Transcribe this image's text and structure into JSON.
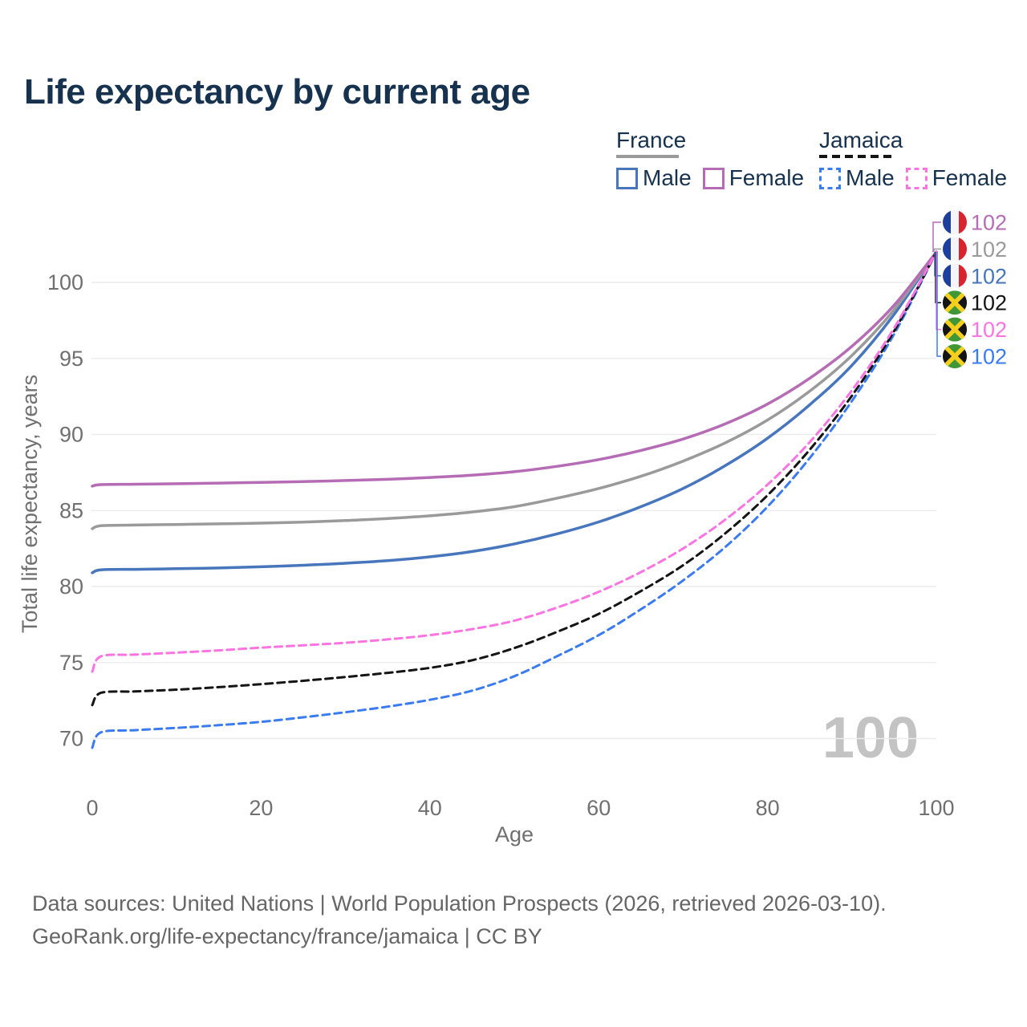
{
  "title": "Life expectancy by current age",
  "legend": {
    "groups": [
      {
        "country": "France",
        "line_style": "solid",
        "line_color": "#9a9a9a",
        "items": [
          {
            "label": "Male",
            "color": "#4776bd",
            "style": "solid"
          },
          {
            "label": "Female",
            "color": "#b56cb5",
            "style": "solid"
          }
        ]
      },
      {
        "country": "Jamaica",
        "line_style": "dashed",
        "line_color": "#141414",
        "items": [
          {
            "label": "Male",
            "color": "#3b7bf0",
            "style": "dashed"
          },
          {
            "label": "Female",
            "color": "#fb74e2",
            "style": "dashed"
          }
        ]
      }
    ]
  },
  "watermark": "100",
  "chart_data": {
    "type": "line",
    "title": "Life expectancy by current age",
    "xlabel": "Age",
    "ylabel": "Total life expectancy, years",
    "x_ticks": [
      0,
      20,
      40,
      60,
      80,
      100
    ],
    "y_ticks": [
      70,
      75,
      80,
      85,
      90,
      95,
      100
    ],
    "xlim": [
      0,
      100
    ],
    "ylim": [
      68.5,
      103
    ],
    "grid": "horizontal",
    "legend_position": "top-right",
    "ages": [
      0,
      1,
      5,
      10,
      15,
      20,
      25,
      30,
      35,
      40,
      45,
      50,
      55,
      60,
      65,
      70,
      75,
      80,
      85,
      90,
      95,
      100
    ],
    "series": [
      {
        "name": "France Male",
        "country": "France",
        "sex": "Male",
        "color": "#4776bd",
        "dash": false,
        "flag": "fr",
        "end_value": 102,
        "values": [
          80.9,
          81.1,
          81.13,
          81.17,
          81.22,
          81.3,
          81.4,
          81.53,
          81.7,
          81.95,
          82.3,
          82.8,
          83.45,
          84.25,
          85.25,
          86.45,
          87.95,
          89.75,
          91.95,
          94.55,
          97.9,
          102
        ]
      },
      {
        "name": "France",
        "country": "France",
        "sex": "Total",
        "color": "#9a9a9a",
        "dash": false,
        "flag": "fr",
        "end_value": 102,
        "values": [
          83.8,
          84.0,
          84.04,
          84.08,
          84.12,
          84.17,
          84.24,
          84.34,
          84.47,
          84.65,
          84.9,
          85.25,
          85.8,
          86.45,
          87.25,
          88.25,
          89.45,
          90.95,
          92.85,
          95.2,
          98.2,
          102
        ]
      },
      {
        "name": "France Female",
        "country": "France",
        "sex": "Female",
        "color": "#b56cb5",
        "dash": false,
        "flag": "fr",
        "end_value": 102,
        "values": [
          86.6,
          86.7,
          86.73,
          86.76,
          86.8,
          86.85,
          86.9,
          86.97,
          87.05,
          87.17,
          87.32,
          87.55,
          87.9,
          88.35,
          88.95,
          89.7,
          90.7,
          92.0,
          93.7,
          95.8,
          98.5,
          102
        ]
      },
      {
        "name": "Jamaica Male",
        "country": "Jamaica",
        "sex": "Male",
        "color": "#3b7bf0",
        "dash": true,
        "flag": "jm",
        "end_value": 102,
        "values": [
          69.4,
          70.4,
          70.55,
          70.7,
          70.88,
          71.1,
          71.4,
          71.73,
          72.1,
          72.55,
          73.15,
          74.1,
          75.4,
          76.8,
          78.5,
          80.4,
          82.6,
          85.25,
          88.45,
          92.2,
          96.6,
          102
        ]
      },
      {
        "name": "Jamaica",
        "country": "Jamaica",
        "sex": "Total",
        "color": "#141414",
        "dash": true,
        "flag": "jm",
        "end_value": 102,
        "values": [
          72.2,
          73.0,
          73.1,
          73.22,
          73.38,
          73.58,
          73.8,
          74.05,
          74.32,
          74.65,
          75.15,
          75.95,
          77.0,
          78.2,
          79.7,
          81.4,
          83.5,
          86.0,
          89.0,
          92.55,
          96.8,
          102
        ]
      },
      {
        "name": "Jamaica Female",
        "country": "Jamaica",
        "sex": "Female",
        "color": "#fb74e2",
        "dash": true,
        "flag": "jm",
        "end_value": 102,
        "values": [
          74.4,
          75.4,
          75.52,
          75.65,
          75.8,
          75.98,
          76.13,
          76.3,
          76.52,
          76.8,
          77.2,
          77.75,
          78.6,
          79.65,
          80.95,
          82.5,
          84.4,
          86.7,
          89.5,
          92.9,
          97.0,
          102
        ]
      }
    ],
    "end_labels": [
      {
        "series": "France Female",
        "flag": "fr",
        "color": "#b56cb5",
        "text": "102"
      },
      {
        "series": "France",
        "flag": "fr",
        "color": "#9a9a9a",
        "text": "102"
      },
      {
        "series": "France Male",
        "flag": "fr",
        "color": "#4776bd",
        "text": "102"
      },
      {
        "series": "Jamaica",
        "flag": "jm",
        "color": "#141414",
        "text": "102"
      },
      {
        "series": "Jamaica Female",
        "flag": "jm",
        "color": "#fb74e2",
        "text": "102"
      },
      {
        "series": "Jamaica Male",
        "flag": "jm",
        "color": "#3b7bf0",
        "text": "102"
      }
    ],
    "flag_colors": {
      "fr": {
        "blue": "#1e3f9e",
        "white": "#f5f5f7",
        "red": "#d8242f"
      },
      "jm": {
        "green": "#3f9737",
        "black": "#141414",
        "gold": "#f5cf1d"
      }
    }
  },
  "footer": {
    "line1": "Data sources: United Nations | World Population Prospects (2026, retrieved 2026-03-10).",
    "line2": "GeoRank.org/life-expectancy/france/jamaica | CC BY"
  }
}
